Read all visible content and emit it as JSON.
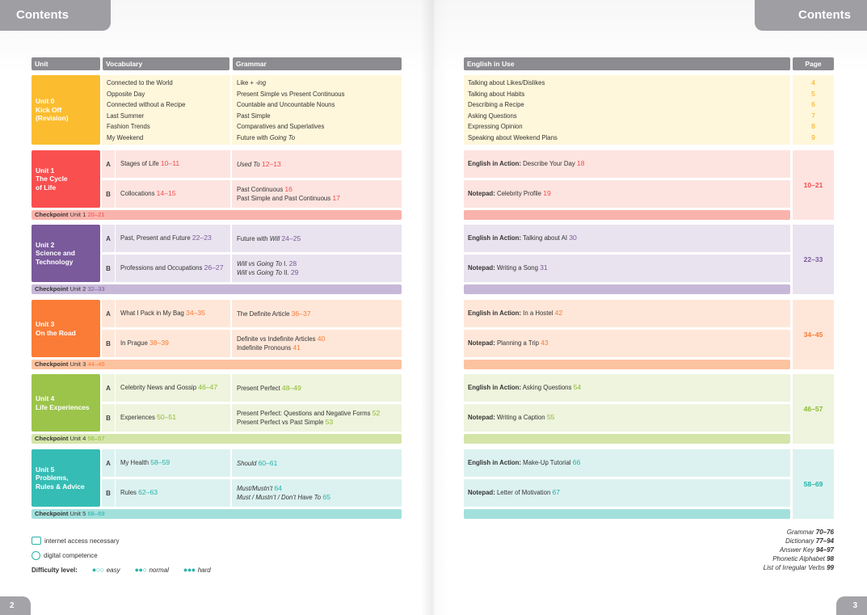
{
  "header": {
    "left_title": "Contents",
    "right_title": "Contents"
  },
  "footer": {
    "left_page": "2",
    "right_page": "3"
  },
  "columns": {
    "unit": "Unit",
    "vocabulary": "Vocabulary",
    "grammar": "Grammar",
    "english_in_use": "English in Use",
    "page": "Page"
  },
  "unit0": {
    "title_lines": [
      "Unit 0",
      "Kick Off",
      "(Revision)"
    ],
    "vocab": [
      "Connected to the World",
      "Opposite Day",
      "Connected without a Recipe",
      "Last Summer",
      "Fashion Trends",
      "My Weekend"
    ],
    "grammar_1_main": "Like + ",
    "grammar_1_ital": "-ing",
    "grammar": [
      "Present Simple vs Present Continuous",
      "Countable and Uncountable Nouns",
      "Past Simple",
      "Comparatives and Superlatives"
    ],
    "grammar_6_main": "Future with ",
    "grammar_6_ital": "Going To",
    "use": [
      "Talking about Likes/Dislikes",
      "Talking about Habits",
      "Describing a Recipe",
      "Asking Questions",
      "Expressing Opinion",
      "Speaking about Weekend Plans"
    ],
    "pages": [
      "4",
      "5",
      "6",
      "7",
      "8",
      "9"
    ]
  },
  "units": [
    {
      "title_lines": [
        "Unit 1",
        "The Cycle",
        "of Life"
      ],
      "color": "#fa4f4f",
      "num_color": "#f24d4d",
      "light": "#fde4e0",
      "ck_color": "#f9b3ac",
      "a_letter": "A",
      "b_letter": "B",
      "a_vocab": "Stages of Life",
      "a_vocab_num": "10–11",
      "b_vocab": "Collocations",
      "b_vocab_num": "14–15",
      "a_gram": "Used To",
      "a_gram_num": "12–13",
      "b_gram_1": "Past Continuous",
      "b_gram_1_num": "16",
      "b_gram_2": "Past Simple and Past Continuous",
      "b_gram_2_num": "17",
      "a_use_label": "English in Action:",
      "a_use": "Describe Your Day",
      "a_use_num": "18",
      "b_use_label": "Notepad:",
      "b_use": "Celebrity Profile",
      "b_use_num": "19",
      "pages": "10–21",
      "ck_label": "Checkpoint",
      "ck_text": "Unit 1",
      "ck_num": "20–21"
    },
    {
      "title_lines": [
        "Unit 2",
        "Science and",
        "Technology"
      ],
      "color": "#7a5a9b",
      "num_color": "#7a5a9b",
      "light": "#e9e3ef",
      "ck_color": "#c7b8d8",
      "a_letter": "A",
      "b_letter": "B",
      "a_vocab": "Past, Present and Future",
      "a_vocab_num": "22–23",
      "b_vocab": "Professions and Occupations",
      "b_vocab_num": "26–27",
      "a_gram": "Future with ",
      "a_gram_ital": "Will",
      "a_gram_num": "24–25",
      "b_gram_1": "Will vs Going To",
      "b_gram_1_plain": " I.",
      "b_gram_1_num": "28",
      "b_gram_2": "Will vs Going To",
      "b_gram_2_plain": " II.",
      "b_gram_2_num": "29",
      "a_use_label": "English in Action:",
      "a_use": "Talking about AI",
      "a_use_num": "30",
      "b_use_label": "Notepad:",
      "b_use": "Writing a Song",
      "b_use_num": "31",
      "pages": "22–33",
      "ck_label": "Checkpoint",
      "ck_text": "Unit 2",
      "ck_num": "32–33"
    },
    {
      "title_lines": [
        "Unit 3",
        "On the Road"
      ],
      "color": "#fb7c36",
      "num_color": "#f97a35",
      "light": "#fee7d9",
      "ck_color": "#fcc3a1",
      "a_letter": "A",
      "b_letter": "B",
      "a_vocab": "What I Pack in My Bag",
      "a_vocab_num": "34–35",
      "b_vocab": "In Prague",
      "b_vocab_num": "38–39",
      "a_gram": "The Definite Article",
      "a_gram_num": "36–37",
      "b_gram_1": "Definite vs Indefinite Articles",
      "b_gram_1_num": "40",
      "b_gram_2": "Indefinite Pronouns",
      "b_gram_2_num": "41",
      "a_use_label": "English in Action:",
      "a_use": "In a Hostel",
      "a_use_num": "42",
      "b_use_label": "Notepad:",
      "b_use": "Planning a Trip",
      "b_use_num": "43",
      "pages": "34–45",
      "ck_label": "Checkpoint",
      "ck_text": "Unit 3",
      "ck_num": "44–45"
    },
    {
      "title_lines": [
        "Unit 4",
        "Life Experiences"
      ],
      "color": "#9cc44a",
      "num_color": "#8dba32",
      "light": "#eef4dd",
      "ck_color": "#d4e5a9",
      "a_letter": "A",
      "b_letter": "B",
      "a_vocab": "Celebrity News and Gossip",
      "a_vocab_num": "46–47",
      "b_vocab": "Experiences",
      "b_vocab_num": "50–51",
      "a_gram": "Present Perfect",
      "a_gram_num": "48–49",
      "b_gram_1": "Present Perfect: Questions and Negative Forms",
      "b_gram_1_num": "52",
      "b_gram_2": "Present Perfect vs Past Simple",
      "b_gram_2_num": "53",
      "a_use_label": "English in Action:",
      "a_use": "Asking Questions",
      "a_use_num": "54",
      "b_use_label": "Notepad:",
      "b_use": "Writing a Caption",
      "b_use_num": "55",
      "pages": "46–57",
      "ck_label": "Checkpoint",
      "ck_text": "Unit 4",
      "ck_num": "56–57"
    },
    {
      "title_lines": [
        "Unit 5",
        "Problems,",
        "Rules & Advice"
      ],
      "color": "#35bdb5",
      "num_color": "#22b2aa",
      "light": "#dcf2f0",
      "ck_color": "#a3e0dc",
      "a_letter": "A",
      "b_letter": "B",
      "a_vocab": "My Health",
      "a_vocab_num": "58–59",
      "b_vocab": "Rules",
      "b_vocab_num": "62–63",
      "a_gram": "Should",
      "a_gram_num": "60–61",
      "b_gram_1": "Must/Mustn’t",
      "b_gram_1_num": "64",
      "b_gram_2": "Must / Mustn’t / Don’t Have To",
      "b_gram_2_num": "65",
      "a_use_label": "English in Action:",
      "a_use": "Make-Up Tutorial",
      "a_use_num": "66",
      "b_use_label": "Notepad:",
      "b_use": "Letter of Motivation",
      "b_use_num": "67",
      "pages": "58–69",
      "ck_label": "Checkpoint",
      "ck_text": "Unit 5",
      "ck_num": "68–69"
    }
  ],
  "legend": {
    "internet": "internet access necessary",
    "digital": "digital competence",
    "difficulty_label": "Difficulty level:",
    "easy_dots": "●○○",
    "easy": "easy",
    "normal_dots": "●●○",
    "normal": "normal",
    "hard_dots": "●●●",
    "hard": "hard",
    "accent": "#2bb3aa"
  },
  "back_matter": [
    {
      "label": "Grammar",
      "pages": "70–76"
    },
    {
      "label": "Dictionary",
      "pages": "77–94"
    },
    {
      "label": "Answer Key",
      "pages": "94–97"
    },
    {
      "label": "Phonetic Alphabet",
      "pages": "98"
    },
    {
      "label": "List of Irregular Verbs",
      "pages": "99"
    }
  ],
  "colors": {
    "header_grey": "#8b8b90",
    "unit0_yellow": "#fbbd2f",
    "unit0_light": "#fff7db",
    "unit0_num": "#f6a912"
  }
}
